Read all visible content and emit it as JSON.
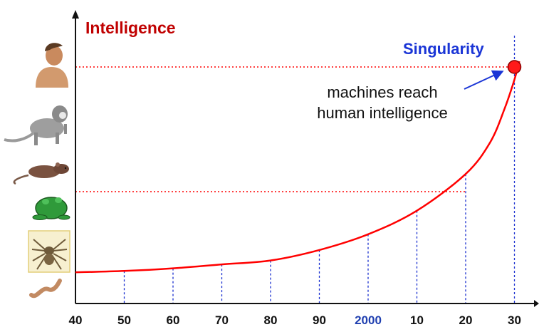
{
  "chart_data": {
    "type": "line",
    "title": "",
    "ylabel": "Intelligence",
    "xlabel": "",
    "x_tick_labels": [
      "40",
      "50",
      "60",
      "70",
      "80",
      "90",
      "2000",
      "10",
      "20",
      "30"
    ],
    "highlighted_tick": "2000",
    "series": [
      {
        "x": [
          1940,
          1950,
          1960,
          1970,
          1980,
          1990,
          2000,
          2010,
          2020,
          2025,
          2028,
          2030,
          2031
        ],
        "y": [
          0.05,
          0.1,
          0.2,
          0.35,
          0.5,
          0.9,
          1.5,
          2.4,
          3.8,
          5.0,
          6.3,
          7.4,
          8.1
        ]
      }
    ],
    "y_levels": [
      "worm",
      "spider",
      "frog",
      "rodent",
      "monkey",
      "human"
    ],
    "reference_lines": [
      {
        "level": "frog",
        "x_end": 2020
      },
      {
        "level": "human",
        "x_end": 2030
      }
    ],
    "singularity": {
      "label": "Singularity",
      "x": 2030,
      "level": "human"
    },
    "annotation": {
      "line1": "machines reach",
      "line2": "human intelligence"
    },
    "colors": {
      "curve": "#ff0000",
      "ylabel": "#c00000",
      "singularity": "#1a35d6",
      "drop_lines": "#1a2fd0",
      "highlight_tick": "#1f3fb0",
      "axis": "#111111"
    }
  }
}
